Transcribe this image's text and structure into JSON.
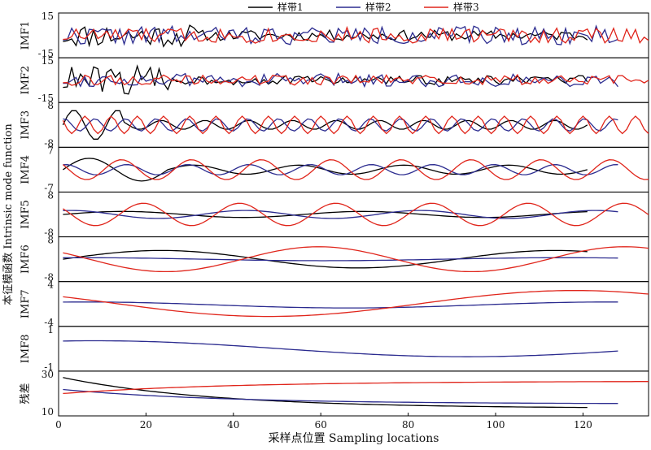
{
  "chart_data": {
    "type": "line",
    "xlabel": "采样点位置 Sampling locations",
    "ylabel": "本征模函数 Intrinsic mode function",
    "xlim": [
      0,
      135
    ],
    "x_ticks": [
      "0",
      "20",
      "40",
      "60",
      "80",
      "100",
      "120"
    ],
    "x_tick_values": [
      0,
      20,
      40,
      60,
      80,
      100,
      120
    ],
    "legend_position": "top",
    "series": [
      {
        "name": "样带1",
        "color": "#000000",
        "length": 121
      },
      {
        "name": "样带2",
        "color": "#2b2b8f",
        "length": 128
      },
      {
        "name": "样带3",
        "color": "#e0251b",
        "length": 135
      }
    ],
    "panels": [
      {
        "label": "IMF1",
        "ylim": [
          -15,
          15
        ],
        "ticks": [
          "15",
          "-15"
        ],
        "series": [
          {
            "model": "noise",
            "amp": [
              9,
              7,
              6
            ],
            "seed": [
              11,
              22,
              33
            ],
            "offset": [
              0,
              0,
              0
            ]
          }
        ]
      },
      {
        "label": "IMF2",
        "ylim": [
          -15,
          15
        ],
        "ticks": [
          "15",
          "-15"
        ],
        "series": [
          {
            "model": "noise2",
            "amp": [
              10,
              5,
              4
            ],
            "seed": [
              44,
              55,
              66
            ],
            "offset": [
              0,
              0,
              0
            ]
          }
        ]
      },
      {
        "label": "IMF3",
        "ylim": [
          -8,
          8
        ],
        "ticks": [
          "8",
          "-8"
        ],
        "series": [
          {
            "model": "wave",
            "period": [
              10,
              7,
              6
            ],
            "amp": [
              3,
              2.5,
              3.5
            ],
            "offset": [
              0,
              0,
              0
            ]
          }
        ]
      },
      {
        "label": "IMF4",
        "ylim": [
          -7,
          7
        ],
        "ticks": [
          "7",
          "-7"
        ],
        "series": [
          {
            "model": "wave",
            "period": [
              24,
              14,
              16
            ],
            "amp": [
              2.5,
              1.8,
              3.5
            ],
            "offset": [
              0,
              0,
              0
            ]
          }
        ]
      },
      {
        "label": "IMF5",
        "ylim": [
          -8,
          8
        ],
        "ticks": [
          "8",
          "-8"
        ],
        "series": [
          {
            "model": "wave",
            "period": [
              55,
              40,
              22
            ],
            "amp": [
              1.2,
              1.6,
              4.5
            ],
            "offset": [
              0,
              0,
              0
            ]
          }
        ]
      },
      {
        "label": "IMF6",
        "ylim": [
          -8,
          8
        ],
        "ticks": [
          "8",
          "-8"
        ],
        "series": [
          {
            "model": "wave",
            "period": [
              90,
              110,
              70
            ],
            "amp": [
              3.5,
              0.6,
              5
            ],
            "offset": [
              0,
              0,
              0
            ]
          }
        ]
      },
      {
        "label": "IMF7",
        "ylim": [
          -4,
          4
        ],
        "ticks": [
          "4",
          "-4"
        ],
        "series": [
          {
            "model": "wave",
            "period": [
              0,
              120,
              140
            ],
            "amp": [
              0,
              0.6,
              2.6
            ],
            "offset": [
              0,
              -0.2,
              0.1
            ]
          }
        ]
      },
      {
        "label": "IMF8",
        "ylim": [
          -1,
          1
        ],
        "ticks": [
          "1",
          "-1"
        ],
        "series": [
          {
            "model": "wave",
            "period": [
              0,
              170,
              0
            ],
            "amp": [
              0,
              0.4,
              0
            ],
            "offset": [
              0,
              0,
              0
            ]
          }
        ]
      },
      {
        "label": "残差",
        "ylim": [
          10,
          30
        ],
        "ticks": [
          "30",
          "10"
        ],
        "series": [
          {
            "model": "residual",
            "start": [
              28,
              22,
              20
            ],
            "end": [
              13,
              15,
              26
            ]
          }
        ]
      }
    ]
  }
}
